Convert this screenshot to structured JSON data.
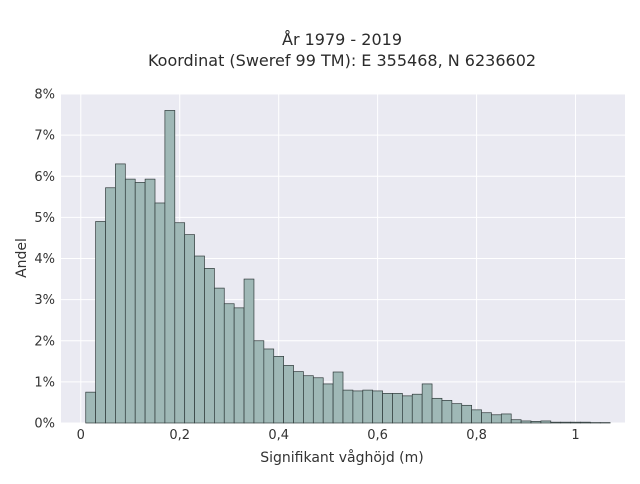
{
  "chart_data": {
    "type": "bar",
    "title": [
      "År 1979 - 2019",
      "Koordinat (Sweref 99 TM): E 355468, N 6236602"
    ],
    "xlabel": "Signifikant våghöjd (m)",
    "ylabel": "Andel",
    "x_ticks": [
      {
        "value": 0,
        "label": "0"
      },
      {
        "value": 0.2,
        "label": "0,2"
      },
      {
        "value": 0.4,
        "label": "0,4"
      },
      {
        "value": 0.6,
        "label": "0,6"
      },
      {
        "value": 0.8,
        "label": "0,8"
      },
      {
        "value": 1.0,
        "label": "1"
      }
    ],
    "y_ticks": [
      {
        "value": 0,
        "label": "0%"
      },
      {
        "value": 1,
        "label": "1%"
      },
      {
        "value": 2,
        "label": "2%"
      },
      {
        "value": 3,
        "label": "3%"
      },
      {
        "value": 4,
        "label": "4%"
      },
      {
        "value": 5,
        "label": "5%"
      },
      {
        "value": 6,
        "label": "6%"
      },
      {
        "value": 7,
        "label": "7%"
      },
      {
        "value": 8,
        "label": "8%"
      }
    ],
    "xlim": [
      -0.04,
      1.1
    ],
    "ylim": [
      0,
      8
    ],
    "bin_width": 0.02,
    "bins_start": [
      0.01,
      0.03,
      0.05,
      0.07,
      0.09,
      0.11,
      0.13,
      0.15,
      0.17,
      0.19,
      0.21,
      0.23,
      0.25,
      0.27,
      0.29,
      0.31,
      0.33,
      0.35,
      0.37,
      0.39,
      0.41,
      0.43,
      0.45,
      0.47,
      0.49,
      0.51,
      0.53,
      0.55,
      0.57,
      0.59,
      0.61,
      0.63,
      0.65,
      0.67,
      0.69,
      0.71,
      0.73,
      0.75,
      0.77,
      0.79,
      0.81,
      0.83,
      0.85,
      0.87,
      0.89,
      0.91,
      0.93,
      0.95,
      0.97,
      0.99,
      1.01,
      1.03,
      1.05
    ],
    "values": [
      0.75,
      4.9,
      5.72,
      6.3,
      5.93,
      5.85,
      5.93,
      5.35,
      7.6,
      4.87,
      4.58,
      4.06,
      3.76,
      3.28,
      2.9,
      2.8,
      3.5,
      2.0,
      1.8,
      1.62,
      1.4,
      1.25,
      1.15,
      1.1,
      0.95,
      1.24,
      0.8,
      0.78,
      0.8,
      0.78,
      0.72,
      0.72,
      0.66,
      0.7,
      0.95,
      0.6,
      0.55,
      0.47,
      0.43,
      0.32,
      0.25,
      0.2,
      0.22,
      0.08,
      0.05,
      0.04,
      0.05,
      0.02,
      0.02,
      0.02,
      0.02,
      0.01,
      0.01
    ],
    "colors": {
      "plot_background": "#eaeaf2",
      "grid": "#ffffff",
      "bar_fill": "#9fb8b6",
      "bar_stroke": "#2f3a3a"
    },
    "grid": true
  }
}
